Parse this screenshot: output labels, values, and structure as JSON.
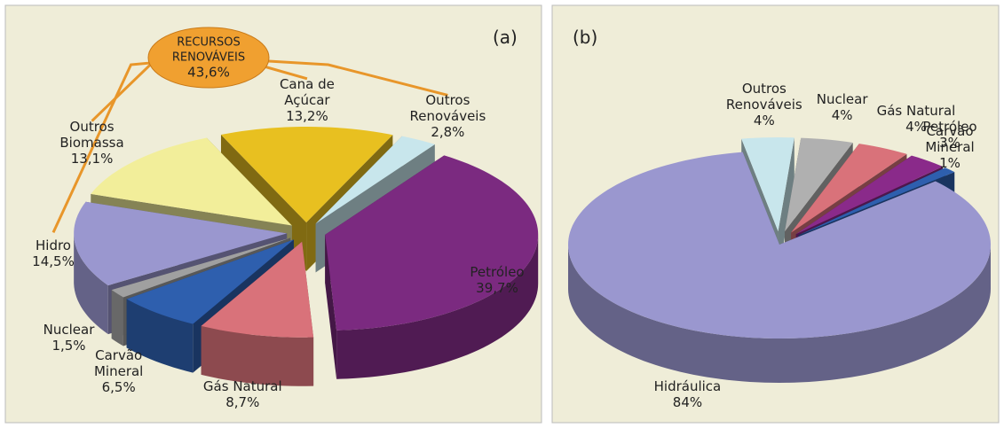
{
  "chart_data": [
    {
      "type": "pie",
      "label": "(a)",
      "categories": [
        "Petróleo",
        "Gás Natural",
        "Carvão Mineral",
        "Nuclear",
        "Hidro",
        "Outros Biomassa",
        "Cana de Açúcar",
        "Outros Renováveis"
      ],
      "values": [
        39.7,
        8.7,
        6.5,
        1.5,
        14.5,
        13.1,
        13.2,
        2.8
      ],
      "value_labels": [
        "39,7%",
        "8,7%",
        "6,5%",
        "1,5%",
        "14,5%",
        "13,1%",
        "13,2%",
        "2,8%"
      ],
      "colors": [
        "#7b2a80",
        "#d9727a",
        "#2e5fae",
        "#a0a0a0",
        "#9a97cf",
        "#f2ee9a",
        "#e8c020",
        "#c8e6ec"
      ],
      "annotation": {
        "text": "RECURSOS RENOVÁVEIS",
        "value": 43.6,
        "value_label": "43,6%"
      }
    },
    {
      "type": "pie",
      "label": "(b)",
      "categories": [
        "Hidráulica",
        "Outros Renováveis",
        "Nuclear",
        "Gás Natural",
        "Petróleo",
        "Carvão Mineral"
      ],
      "values": [
        84,
        4,
        4,
        4,
        3,
        1
      ],
      "value_labels": [
        "84%",
        "4%",
        "4%",
        "4%",
        "3%",
        "1%"
      ],
      "colors": [
        "#9a97cf",
        "#c8e6ec",
        "#b0b0b0",
        "#d9727a",
        "#8a2a8a",
        "#2e5fae"
      ]
    }
  ]
}
